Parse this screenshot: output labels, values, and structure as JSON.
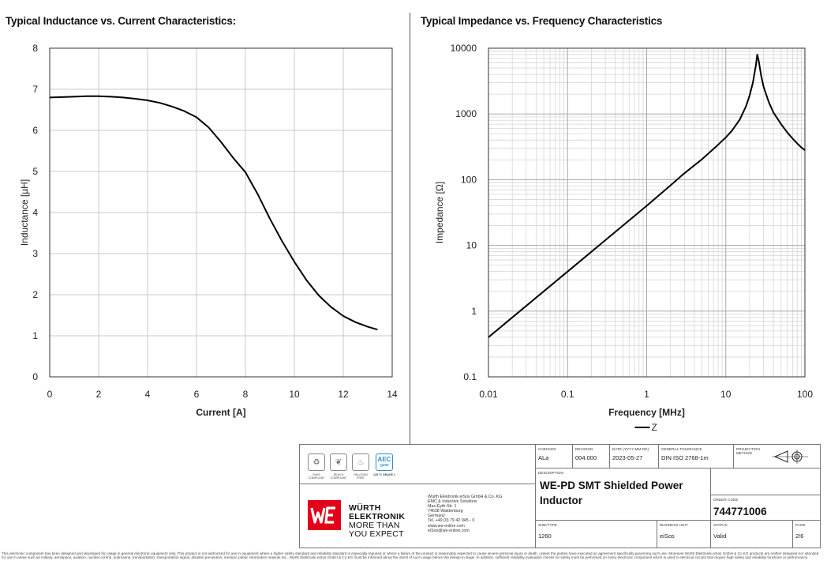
{
  "chart_data": [
    {
      "type": "line",
      "title": "Typical Inductance vs. Current Characteristics:",
      "xlabel": "Current [A]",
      "ylabel": "Inductance [µH]",
      "xlim": [
        0,
        14
      ],
      "ylim": [
        0,
        8
      ],
      "xticks": [
        "0",
        "2",
        "4",
        "6",
        "8",
        "10",
        "12",
        "14"
      ],
      "yticks": [
        "0",
        "1",
        "2",
        "3",
        "4",
        "5",
        "6",
        "7",
        "8"
      ],
      "grid": true,
      "series": [
        {
          "x": [
            0,
            0.5,
            1,
            1.5,
            2,
            2.5,
            3,
            3.5,
            4,
            4.5,
            5,
            5.5,
            6,
            6.5,
            7,
            7.5,
            8,
            8.5,
            9,
            9.5,
            10,
            10.5,
            11,
            11.5,
            12,
            12.5,
            13,
            13.4
          ],
          "y": [
            6.8,
            6.81,
            6.82,
            6.83,
            6.83,
            6.82,
            6.8,
            6.77,
            6.73,
            6.67,
            6.58,
            6.47,
            6.32,
            6.07,
            5.72,
            5.33,
            4.98,
            4.45,
            3.85,
            3.3,
            2.8,
            2.35,
            1.98,
            1.7,
            1.48,
            1.33,
            1.22,
            1.15
          ]
        }
      ]
    },
    {
      "type": "line",
      "title": "Typical Impedance vs. Frequency Characteristics",
      "xlabel": "Frequency [MHz]",
      "ylabel": "Impedance [Ω]",
      "xscale": "log",
      "yscale": "log",
      "xlim": [
        0.01,
        100
      ],
      "ylim": [
        0.1,
        10000
      ],
      "xticks": [
        "0.01",
        "0.1",
        "1",
        "10",
        "100"
      ],
      "yticks": [
        "0.1",
        "1",
        "10",
        "100",
        "1000",
        "10000"
      ],
      "grid": true,
      "legend": "bottom-center",
      "series": [
        {
          "name": "Z",
          "x": [
            0.01,
            0.03,
            0.1,
            0.3,
            1,
            2,
            3,
            5,
            8,
            10,
            12,
            15,
            18,
            20,
            22,
            24,
            25,
            26,
            28,
            30,
            35,
            40,
            50,
            60,
            70,
            80,
            90,
            100
          ],
          "y": [
            0.4,
            1.2,
            4.0,
            12,
            40,
            82,
            125,
            205,
            340,
            440,
            560,
            820,
            1300,
            1900,
            3000,
            5500,
            8000,
            6500,
            3800,
            2600,
            1500,
            1050,
            700,
            520,
            420,
            355,
            310,
            280
          ]
        }
      ]
    }
  ],
  "titleblock": {
    "checked_label": "CHECKED",
    "checked": "ALa",
    "revision_label": "REVISION",
    "revision": "004.000",
    "date_label": "DATE (YYYY-MM-DD)",
    "date": "2023-05-27",
    "tolerance_label": "GENERAL TOLERANCE",
    "tolerance": "DIN ISO 2768-1m",
    "projection_label": "PROJECTION METHOD",
    "description_label": "DESCRIPTION",
    "description": "WE-PD SMT Shielded Power Inductor",
    "order_code_label": "ORDER CODE",
    "order_code": "744771006",
    "size_label": "SIZE/TYPE",
    "size": "1260",
    "business_label": "BUSINESS UNIT",
    "business": "eiSos",
    "status_label": "STATUS",
    "status": "Valid",
    "page_label": "PAGE",
    "page": "2/6",
    "company_name_1": "WÜRTH",
    "company_name_2": "ELEKTRONIK",
    "slogan_1": "MORE THAN",
    "slogan_2": "YOU EXPECT",
    "address": "Würth Elektronik eiSos GmbH & Co. KG\nEMC & Inductive Solutions\nMax-Eyth-Str. 1\n74638 Waldenburg\nGermany\nTel. +49 (0) 79 42 945 - 0\nwww.we-online.com\neiSos@we-online.com",
    "certs": [
      {
        "name": "RoHS",
        "sub": "COMPLIANT"
      },
      {
        "name": "REACH",
        "sub": "COMPLIANT"
      },
      {
        "name": "HALOGEN",
        "sub": "FREE"
      },
      {
        "name": "AEC Q200",
        "sub": "125 °C GRADE 1"
      }
    ],
    "aec_top": "AEC",
    "aec_bottom": "Q200"
  },
  "disclaimer": "This electronic component has been designed and developed for usage in general electronic equipment only. This product is not authorized for use in equipment where a higher safety standard and reliability standard is especially required or where a failure of the product is reasonably expected to cause severe personal injury or death, unless the parties have executed an agreement specifically governing such use. Moreover Würth Elektronik eiSos GmbH & Co KG products are neither designed nor intended for use in areas such as military, aerospace, aviation, nuclear control, submarine, transportation, transportation signal, disaster prevention, medical, public information network etc.. Würth Elektronik eiSos GmbH & Co KG must be informed about the intent of such usage before the design-in stage. In addition, sufficient reliability evaluation checks for safety must be performed on every electronic component which is used in electrical circuits that require high safety and reliability functions or performance."
}
